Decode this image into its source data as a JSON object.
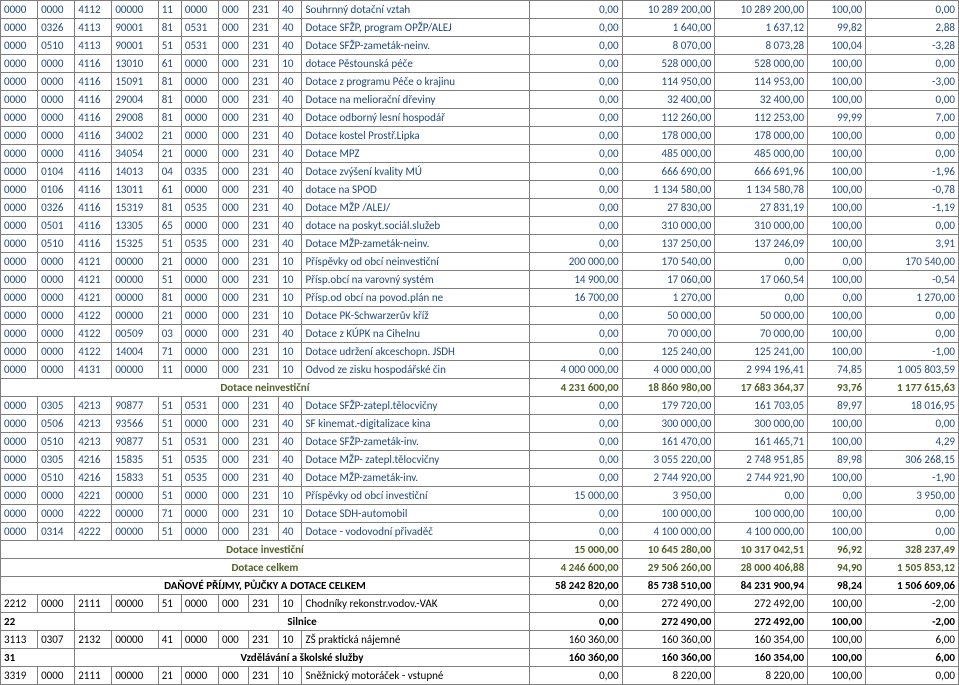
{
  "columns": [
    "c0",
    "c1",
    "c2",
    "c3",
    "c4",
    "c5",
    "c6",
    "c7",
    "c8",
    "c9",
    "c10",
    "c11",
    "c12",
    "c13",
    "c14"
  ],
  "rows": [
    {
      "style": "blue",
      "cells": [
        "0000",
        "0000",
        "4112",
        "00000",
        "11",
        "0000",
        "000",
        "231",
        "40",
        "Souhrnný dotační vztah",
        "0,00",
        "10 289 200,00",
        "10 289 200,00",
        "100,00",
        "0,00"
      ]
    },
    {
      "style": "blue",
      "cells": [
        "0000",
        "0326",
        "4113",
        "90001",
        "81",
        "0531",
        "000",
        "231",
        "40",
        "Dotace SFŽP, program OPŽP/ALEJ",
        "0,00",
        "1 640,00",
        "1 637,12",
        "99,82",
        "2,88"
      ]
    },
    {
      "style": "blue",
      "cells": [
        "0000",
        "0510",
        "4113",
        "90001",
        "51",
        "0531",
        "000",
        "231",
        "40",
        "Dotace SFŽP-zameták-neinv.",
        "0,00",
        "8 070,00",
        "8 073,28",
        "100,04",
        "-3,28"
      ]
    },
    {
      "style": "blue",
      "cells": [
        "0000",
        "0000",
        "4116",
        "13010",
        "61",
        "0000",
        "000",
        "231",
        "10",
        "dotace Pěstounská péče",
        "0,00",
        "528 000,00",
        "528 000,00",
        "100,00",
        "0,00"
      ]
    },
    {
      "style": "blue",
      "cells": [
        "0000",
        "0000",
        "4116",
        "15091",
        "81",
        "0000",
        "000",
        "231",
        "40",
        "Dotace z programu Péče o krajinu",
        "0,00",
        "114 950,00",
        "114 953,00",
        "100,00",
        "-3,00"
      ]
    },
    {
      "style": "blue",
      "cells": [
        "0000",
        "0000",
        "4116",
        "29004",
        "81",
        "0000",
        "000",
        "231",
        "40",
        "Dotace na meliorační dřeviny",
        "0,00",
        "32 400,00",
        "32 400,00",
        "100,00",
        "0,00"
      ]
    },
    {
      "style": "blue",
      "cells": [
        "0000",
        "0000",
        "4116",
        "29008",
        "81",
        "0000",
        "000",
        "231",
        "40",
        "Dotace odborný lesní hospodář",
        "0,00",
        "112 260,00",
        "112 253,00",
        "99,99",
        "7,00"
      ]
    },
    {
      "style": "blue",
      "cells": [
        "0000",
        "0000",
        "4116",
        "34002",
        "21",
        "0000",
        "000",
        "231",
        "40",
        "Dotace kostel Prostř.Lipka",
        "0,00",
        "178 000,00",
        "178 000,00",
        "100,00",
        "0,00"
      ]
    },
    {
      "style": "blue",
      "cells": [
        "0000",
        "0000",
        "4116",
        "34054",
        "21",
        "0000",
        "000",
        "231",
        "40",
        "Dotace MPZ",
        "0,00",
        "485 000,00",
        "485 000,00",
        "100,00",
        "0,00"
      ]
    },
    {
      "style": "blue",
      "cells": [
        "0000",
        "0104",
        "4116",
        "14013",
        "04",
        "0335",
        "000",
        "231",
        "40",
        "Dotace zvýšení kvality MÚ",
        "0,00",
        "666 690,00",
        "666 691,96",
        "100,00",
        "-1,96"
      ]
    },
    {
      "style": "blue",
      "cells": [
        "0000",
        "0106",
        "4116",
        "13011",
        "61",
        "0000",
        "000",
        "231",
        "40",
        "dotace na SPOD",
        "0,00",
        "1 134 580,00",
        "1 134 580,78",
        "100,00",
        "-0,78"
      ]
    },
    {
      "style": "blue",
      "cells": [
        "0000",
        "0326",
        "4116",
        "15319",
        "81",
        "0535",
        "000",
        "231",
        "40",
        "Dotace MŽP /ALEJ/",
        "0,00",
        "27 830,00",
        "27 831,19",
        "100,00",
        "-1,19"
      ]
    },
    {
      "style": "blue",
      "cells": [
        "0000",
        "0501",
        "4116",
        "13305",
        "65",
        "0000",
        "000",
        "231",
        "40",
        "dotace na poskyt.sociál.služeb",
        "0,00",
        "310 000,00",
        "310 000,00",
        "100,00",
        "0,00"
      ]
    },
    {
      "style": "blue",
      "cells": [
        "0000",
        "0510",
        "4116",
        "15325",
        "51",
        "0535",
        "000",
        "231",
        "40",
        "Dotace MŽP-zameták-neinv.",
        "0,00",
        "137 250,00",
        "137 246,09",
        "100,00",
        "3,91"
      ]
    },
    {
      "style": "blue",
      "cells": [
        "0000",
        "0000",
        "4121",
        "00000",
        "21",
        "0000",
        "000",
        "231",
        "10",
        "Příspěvky od obcí neinvestiční",
        "200 000,00",
        "170 540,00",
        "0,00",
        "0,00",
        "170 540,00"
      ]
    },
    {
      "style": "blue",
      "cells": [
        "0000",
        "0000",
        "4121",
        "00000",
        "51",
        "0000",
        "000",
        "231",
        "10",
        "Přísp.obcí na varovný systém",
        "14 900,00",
        "17 060,00",
        "17 060,54",
        "100,00",
        "-0,54"
      ]
    },
    {
      "style": "blue",
      "cells": [
        "0000",
        "0000",
        "4121",
        "00000",
        "81",
        "0000",
        "000",
        "231",
        "10",
        "Přísp.od obcí na povod.plán ne",
        "16 700,00",
        "1 270,00",
        "0,00",
        "0,00",
        "1 270,00"
      ]
    },
    {
      "style": "blue",
      "cells": [
        "0000",
        "0000",
        "4122",
        "00000",
        "21",
        "0000",
        "000",
        "231",
        "10",
        "Dotace PK-Schwarzerův kříž",
        "0,00",
        "50 000,00",
        "50 000,00",
        "100,00",
        "0,00"
      ]
    },
    {
      "style": "blue",
      "cells": [
        "0000",
        "0000",
        "4122",
        "00509",
        "03",
        "0000",
        "000",
        "231",
        "40",
        "Dotace z KÚPK na Cihelnu",
        "0,00",
        "70 000,00",
        "70 000,00",
        "100,00",
        "0,00"
      ]
    },
    {
      "style": "blue",
      "cells": [
        "0000",
        "0000",
        "4122",
        "14004",
        "71",
        "0000",
        "000",
        "231",
        "10",
        "Dotace udržení akceschopn. JSDH",
        "0,00",
        "125 240,00",
        "125 241,00",
        "100,00",
        "-1,00"
      ]
    },
    {
      "style": "blue",
      "cells": [
        "0000",
        "0000",
        "4131",
        "00000",
        "11",
        "0000",
        "000",
        "231",
        "10",
        "Odvod ze zisku hospodářské čin",
        "4 000 000,00",
        "4 000 000,00",
        "2 994 196,41",
        "74,85",
        "1 005 803,59"
      ]
    },
    {
      "style": "greenish bold",
      "cells": [
        {
          "colspan": 10,
          "text": "Dotace neinvestiční",
          "class": "center"
        },
        "4 231 600,00",
        "18 860 980,00",
        "17 683 364,37",
        "93,76",
        "1 177 615,63"
      ]
    },
    {
      "style": "blue",
      "cells": [
        "0000",
        "0305",
        "4213",
        "90877",
        "51",
        "0531",
        "000",
        "231",
        "40",
        "Dotace SFŽP-zatepl.tělocvičny",
        "0,00",
        "179 720,00",
        "161 703,05",
        "89,97",
        "18 016,95"
      ]
    },
    {
      "style": "blue",
      "cells": [
        "0000",
        "0506",
        "4213",
        "93566",
        "51",
        "0000",
        "000",
        "231",
        "40",
        "SF kinemat.-digitalizace kina",
        "0,00",
        "300 000,00",
        "300 000,00",
        "100,00",
        "0,00"
      ]
    },
    {
      "style": "blue",
      "cells": [
        "0000",
        "0510",
        "4213",
        "90877",
        "51",
        "0531",
        "000",
        "231",
        "40",
        "Dotace SFŽP-zameták-inv.",
        "0,00",
        "161 470,00",
        "161 465,71",
        "100,00",
        "4,29"
      ]
    },
    {
      "style": "blue",
      "cells": [
        "0000",
        "0305",
        "4216",
        "15835",
        "51",
        "0535",
        "000",
        "231",
        "40",
        "Dotace MŽP- zatepl.tělocvičny",
        "0,00",
        "3 055 220,00",
        "2 748 951,85",
        "89,98",
        "306 268,15"
      ]
    },
    {
      "style": "blue",
      "cells": [
        "0000",
        "0510",
        "4216",
        "15833",
        "51",
        "0535",
        "000",
        "231",
        "40",
        "Dotace MŽP-zameták-inv.",
        "0,00",
        "2 744 920,00",
        "2 744 921,90",
        "100,00",
        "-1,90"
      ]
    },
    {
      "style": "blue",
      "cells": [
        "0000",
        "0000",
        "4221",
        "00000",
        "51",
        "0000",
        "000",
        "231",
        "10",
        "Příspěvky od obcí investiční",
        "15 000,00",
        "3 950,00",
        "0,00",
        "0,00",
        "3 950,00"
      ]
    },
    {
      "style": "blue",
      "cells": [
        "0000",
        "0000",
        "4222",
        "00000",
        "71",
        "0000",
        "000",
        "231",
        "10",
        "Dotace SDH-automobil",
        "0,00",
        "100 000,00",
        "100 000,00",
        "100,00",
        "0,00"
      ]
    },
    {
      "style": "blue",
      "cells": [
        "0000",
        "0314",
        "4222",
        "00000",
        "51",
        "0000",
        "000",
        "231",
        "40",
        "Dotace - vodovodní přivaděč",
        "0,00",
        "4 100 000,00",
        "4 100 000,00",
        "100,00",
        "0,00"
      ]
    },
    {
      "style": "greenish bold",
      "cells": [
        {
          "colspan": 10,
          "text": "Dotace investiční",
          "class": "center"
        },
        "15 000,00",
        "10 645 280,00",
        "10 317 042,51",
        "96,92",
        "328 237,49"
      ]
    },
    {
      "style": "greenish bold",
      "cells": [
        {
          "colspan": 10,
          "text": "Dotace celkem",
          "class": "center"
        },
        "4 246 600,00",
        "29 506 260,00",
        "28 000 406,88",
        "94,90",
        "1 505 853,12"
      ]
    },
    {
      "style": "black bold",
      "cells": [
        {
          "colspan": 10,
          "text": "DAŇOVÉ PŘÍJMY, PŮJČKY A DOTACE CELKEM",
          "class": "center"
        },
        "58 242 820,00",
        "85 738 510,00",
        "84 231 900,94",
        "98,24",
        "1 506 609,06"
      ]
    },
    {
      "style": "black",
      "cells": [
        "2212",
        "0000",
        "2111",
        "00000",
        "51",
        "0000",
        "000",
        "231",
        "10",
        "Chodníky rekonstr.vodov.-VAK",
        "0,00",
        "272 490,00",
        "272 492,00",
        "100,00",
        "-2,00"
      ]
    },
    {
      "style": "black bold",
      "cells": [
        {
          "colspan": 2,
          "text": "22"
        },
        {
          "colspan": 8,
          "text": "Silnice",
          "class": "center"
        },
        "0,00",
        "272 490,00",
        "272 492,00",
        "100,00",
        "-2,00"
      ]
    },
    {
      "style": "black",
      "cells": [
        "3113",
        "0307",
        "2132",
        "00000",
        "41",
        "0000",
        "000",
        "231",
        "10",
        "ZŠ praktická nájemné",
        "160 360,00",
        "160 360,00",
        "160 354,00",
        "100,00",
        "6,00"
      ]
    },
    {
      "style": "black bold",
      "cells": [
        {
          "colspan": 2,
          "text": "31"
        },
        {
          "colspan": 8,
          "text": "Vzdělávání a školské služby",
          "class": "center"
        },
        "160 360,00",
        "160 360,00",
        "160 354,00",
        "100,00",
        "6,00"
      ]
    },
    {
      "style": "black",
      "cells": [
        "3319",
        "0000",
        "2111",
        "00000",
        "21",
        "0000",
        "000",
        "231",
        "10",
        "Sněžnický motoráček - vstupné",
        "0,00",
        "8 220,00",
        "8 220,00",
        "100,00",
        "0,00"
      ]
    }
  ]
}
